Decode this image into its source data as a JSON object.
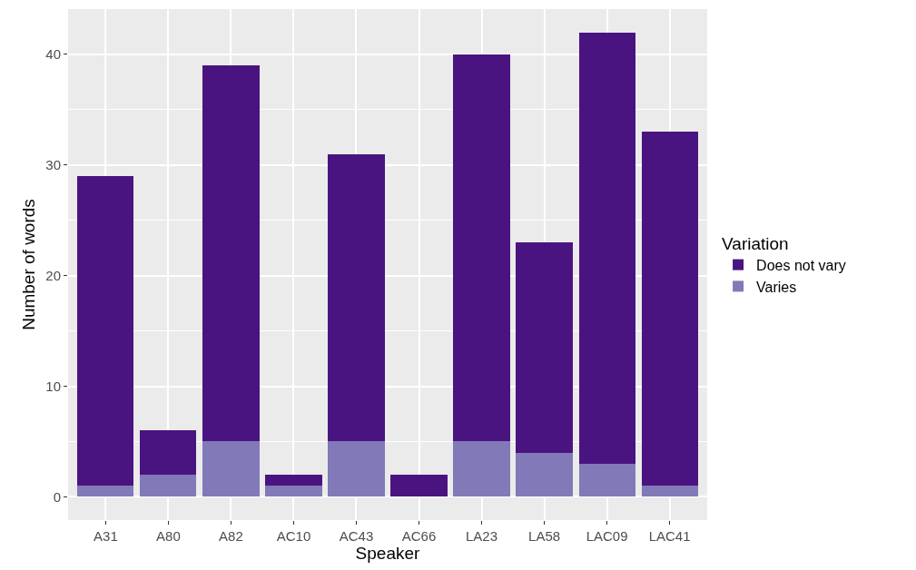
{
  "chart_data": {
    "type": "bar",
    "stacked": true,
    "xlabel": "Speaker",
    "ylabel": "Number of words",
    "legend_title": "Variation",
    "categories": [
      "A31",
      "A80",
      "A82",
      "AC10",
      "AC43",
      "AC66",
      "LA23",
      "LA58",
      "LAC09",
      "LAC41"
    ],
    "series": [
      {
        "name": "Varies",
        "color": "#8179b8",
        "values": [
          1,
          2,
          5,
          1,
          5,
          0,
          5,
          4,
          3,
          1
        ]
      },
      {
        "name": "Does not vary",
        "color": "#4a1480",
        "values": [
          28,
          4,
          34,
          1,
          26,
          2,
          35,
          19,
          39,
          32
        ]
      }
    ],
    "ylim": [
      -2.1,
      44.1
    ],
    "yticks": [
      0,
      10,
      20,
      30,
      40
    ],
    "grid": true,
    "legend": "right"
  }
}
